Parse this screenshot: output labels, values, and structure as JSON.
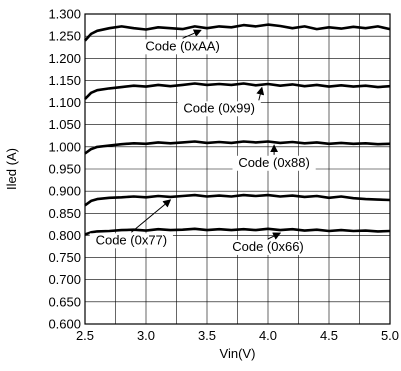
{
  "chart_data": {
    "type": "line",
    "title": "",
    "xlabel": "Vin(V)",
    "ylabel": "Iled (A)",
    "xlim": [
      2.5,
      5.0
    ],
    "ylim": [
      0.6,
      1.3
    ],
    "x_ticks": [
      "2.5",
      "3.0",
      "3.5",
      "4.0",
      "4.5",
      "5.0"
    ],
    "y_ticks": [
      "0.600",
      "0.650",
      "0.700",
      "0.750",
      "0.800",
      "0.850",
      "0.900",
      "0.950",
      "1.000",
      "1.050",
      "1.100",
      "1.150",
      "1.200",
      "1.250",
      "1.300"
    ],
    "grid": true,
    "legend": "none",
    "series": [
      {
        "name": "Code (0xAA)",
        "x": [
          2.5,
          2.55,
          2.6,
          2.7,
          2.8,
          2.9,
          3.0,
          3.1,
          3.2,
          3.3,
          3.4,
          3.5,
          3.6,
          3.7,
          3.8,
          3.9,
          4.0,
          4.1,
          4.2,
          4.3,
          4.4,
          4.5,
          4.6,
          4.7,
          4.8,
          4.9,
          5.0
        ],
        "y": [
          1.24,
          1.255,
          1.262,
          1.268,
          1.272,
          1.268,
          1.265,
          1.27,
          1.268,
          1.266,
          1.272,
          1.268,
          1.272,
          1.27,
          1.275,
          1.272,
          1.276,
          1.273,
          1.268,
          1.272,
          1.266,
          1.27,
          1.267,
          1.271,
          1.268,
          1.272,
          1.266
        ]
      },
      {
        "name": "Code (0x99)",
        "x": [
          2.5,
          2.55,
          2.6,
          2.7,
          2.8,
          2.9,
          3.0,
          3.1,
          3.2,
          3.3,
          3.4,
          3.5,
          3.6,
          3.7,
          3.8,
          3.9,
          4.0,
          4.1,
          4.2,
          4.3,
          4.4,
          4.5,
          4.6,
          4.7,
          4.8,
          4.9,
          5.0
        ],
        "y": [
          1.108,
          1.122,
          1.128,
          1.132,
          1.135,
          1.138,
          1.136,
          1.14,
          1.137,
          1.14,
          1.143,
          1.14,
          1.142,
          1.14,
          1.143,
          1.139,
          1.142,
          1.138,
          1.141,
          1.137,
          1.14,
          1.136,
          1.139,
          1.136,
          1.138,
          1.135,
          1.137
        ]
      },
      {
        "name": "Code (0x88)",
        "x": [
          2.5,
          2.55,
          2.6,
          2.7,
          2.8,
          2.9,
          3.0,
          3.1,
          3.2,
          3.3,
          3.4,
          3.5,
          3.6,
          3.7,
          3.8,
          3.9,
          4.0,
          4.1,
          4.2,
          4.3,
          4.4,
          4.5,
          4.6,
          4.7,
          4.8,
          4.9,
          5.0
        ],
        "y": [
          0.985,
          0.995,
          1.0,
          1.003,
          1.006,
          1.008,
          1.007,
          1.01,
          1.008,
          1.01,
          1.012,
          1.009,
          1.011,
          1.009,
          1.012,
          1.01,
          1.012,
          1.009,
          1.011,
          1.008,
          1.01,
          1.007,
          1.009,
          1.007,
          1.008,
          1.006,
          1.007
        ]
      },
      {
        "name": "Code (0x77)",
        "x": [
          2.5,
          2.55,
          2.6,
          2.7,
          2.8,
          2.9,
          3.0,
          3.1,
          3.2,
          3.3,
          3.4,
          3.5,
          3.6,
          3.7,
          3.8,
          3.9,
          4.0,
          4.1,
          4.2,
          4.3,
          4.4,
          4.5,
          4.6,
          4.7,
          4.8,
          4.9,
          5.0
        ],
        "y": [
          0.868,
          0.878,
          0.882,
          0.885,
          0.886,
          0.888,
          0.886,
          0.889,
          0.887,
          0.889,
          0.891,
          0.888,
          0.89,
          0.888,
          0.891,
          0.889,
          0.891,
          0.888,
          0.89,
          0.887,
          0.889,
          0.885,
          0.888,
          0.884,
          0.882,
          0.881,
          0.88
        ]
      },
      {
        "name": "Code (0x66)",
        "x": [
          2.5,
          2.55,
          2.6,
          2.7,
          2.8,
          2.9,
          3.0,
          3.1,
          3.2,
          3.3,
          3.4,
          3.5,
          3.6,
          3.7,
          3.8,
          3.9,
          4.0,
          4.1,
          4.2,
          4.3,
          4.4,
          4.5,
          4.6,
          4.7,
          4.8,
          4.9,
          5.0
        ],
        "y": [
          0.802,
          0.807,
          0.809,
          0.81,
          0.812,
          0.813,
          0.811,
          0.814,
          0.812,
          0.813,
          0.815,
          0.812,
          0.814,
          0.812,
          0.814,
          0.812,
          0.815,
          0.812,
          0.814,
          0.811,
          0.813,
          0.81,
          0.812,
          0.81,
          0.811,
          0.809,
          0.81
        ]
      }
    ],
    "annotations": [
      {
        "text": "Code (0xAA)",
        "target_series": "Code (0xAA)",
        "target_x": 3.45,
        "label_x": 3.3,
        "label_y": 1.218
      },
      {
        "text": "Code (0x99)",
        "target_series": "Code (0x99)",
        "target_x": 3.95,
        "label_x": 3.6,
        "label_y": 1.078
      },
      {
        "text": "Code (0x88)",
        "target_series": "Code (0x88)",
        "target_x": 4.05,
        "label_x": 4.05,
        "label_y": 0.955
      },
      {
        "text": "Code (0x77)",
        "target_series": "Code (0x77)",
        "target_x": 3.2,
        "label_x": 2.88,
        "label_y": 0.78
      },
      {
        "text": "Code (0x66)",
        "target_series": "Code (0x66)",
        "target_x": 4.1,
        "label_x": 4.0,
        "label_y": 0.765
      }
    ]
  }
}
